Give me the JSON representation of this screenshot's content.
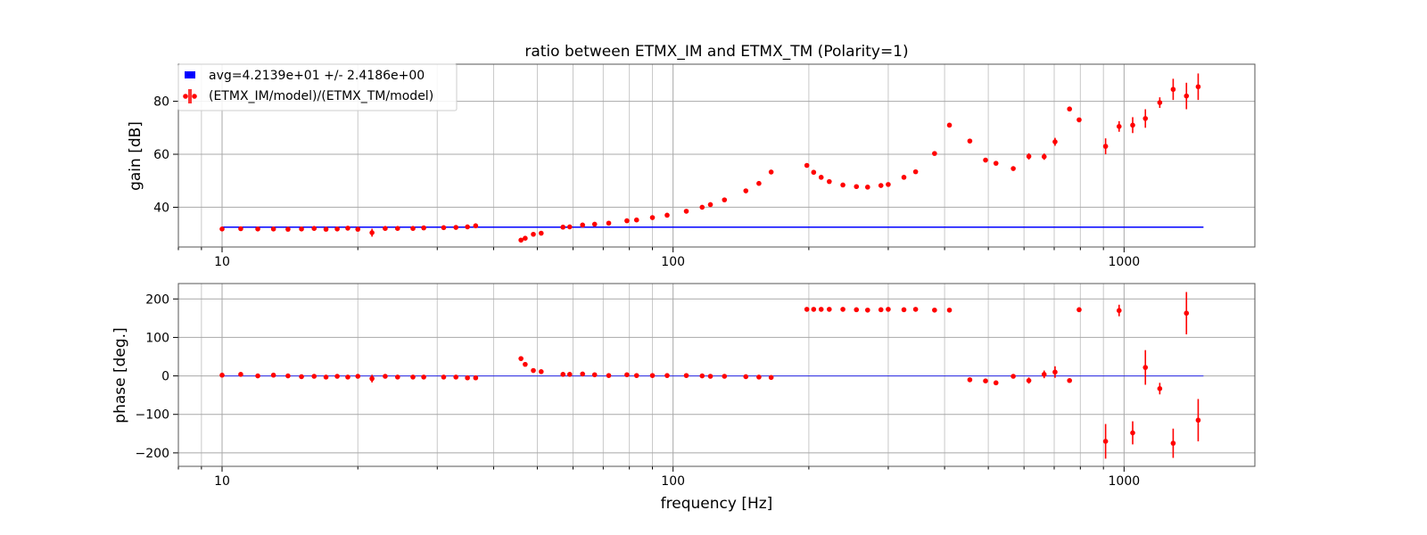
{
  "colors": {
    "avg_line": "#0000ff",
    "points": "#ff0000"
  },
  "chart_data": [
    {
      "type": "scatter",
      "title": "ratio between ETMX_IM and ETMX_TM (Polarity=1)",
      "xlabel": "",
      "ylabel": "gain [dB]",
      "xscale": "log",
      "xlim": [
        8,
        1950
      ],
      "ylim": [
        25,
        94
      ],
      "grid": true,
      "legend_position": "top-left",
      "x_ticks": [
        "10",
        "100",
        "1000"
      ],
      "y_ticks": [
        "40",
        "60",
        "80"
      ],
      "legend": [
        "avg=4.2139e+01 +/- 2.4186e+00",
        "(ETMX_IM/model)/(ETMX_TM/model)"
      ],
      "series": [
        {
          "name": "avg=4.2139e+01 +/- 2.4186e+00",
          "kind": "line",
          "x": [
            10,
            1500
          ],
          "y": [
            32.5,
            32.5
          ]
        },
        {
          "name": "(ETMX_IM/model)/(ETMX_TM/model)",
          "kind": "errorbar",
          "points": [
            [
              10,
              31.8,
              0.5
            ],
            [
              11,
              31.9,
              0.4
            ],
            [
              12,
              31.8,
              0.4
            ],
            [
              13,
              31.8,
              0.4
            ],
            [
              14,
              31.7,
              0.4
            ],
            [
              15,
              31.8,
              0.4
            ],
            [
              16,
              32.0,
              0.4
            ],
            [
              17,
              31.7,
              0.4
            ],
            [
              18,
              31.8,
              0.4
            ],
            [
              19,
              32.1,
              0.5
            ],
            [
              20,
              31.7,
              0.5
            ],
            [
              21.5,
              30.4,
              1.5
            ],
            [
              23,
              32.0,
              0.5
            ],
            [
              24.5,
              32.0,
              0.5
            ],
            [
              26.5,
              32.0,
              0.5
            ],
            [
              28,
              32.2,
              0.5
            ],
            [
              31,
              32.3,
              0.5
            ],
            [
              33,
              32.4,
              0.5
            ],
            [
              35,
              32.6,
              0.5
            ],
            [
              36.5,
              33.0,
              0.5
            ],
            [
              46,
              27.6,
              0.6
            ],
            [
              47,
              28.3,
              0.6
            ],
            [
              49,
              29.8,
              0.5
            ],
            [
              51,
              30.2,
              0.5
            ],
            [
              57,
              32.5,
              0.5
            ],
            [
              59,
              32.6,
              0.5
            ],
            [
              63,
              33.3,
              0.5
            ],
            [
              67,
              33.6,
              0.5
            ],
            [
              72,
              34.0,
              0.5
            ],
            [
              79,
              34.9,
              0.5
            ],
            [
              83,
              35.2,
              0.5
            ],
            [
              90,
              36.1,
              0.5
            ],
            [
              97,
              37.0,
              0.5
            ],
            [
              107,
              38.5,
              0.5
            ],
            [
              116,
              40.0,
              0.5
            ],
            [
              121,
              41.0,
              0.5
            ],
            [
              130,
              42.8,
              0.5
            ],
            [
              145,
              46.2,
              0.5
            ],
            [
              155,
              49.0,
              0.5
            ],
            [
              165,
              53.3,
              0.6
            ],
            [
              198,
              55.8,
              0.6
            ],
            [
              205,
              53.2,
              0.6
            ],
            [
              213,
              51.3,
              0.6
            ],
            [
              222,
              49.7,
              0.6
            ],
            [
              238,
              48.4,
              0.6
            ],
            [
              255,
              47.8,
              0.6
            ],
            [
              270,
              47.6,
              0.6
            ],
            [
              289,
              48.2,
              0.6
            ],
            [
              300,
              48.6,
              0.6
            ],
            [
              325,
              51.3,
              0.6
            ],
            [
              345,
              53.4,
              0.6
            ],
            [
              380,
              60.3,
              0.6
            ],
            [
              410,
              71.0,
              0.6
            ],
            [
              455,
              65.0,
              0.6
            ],
            [
              493,
              57.8,
              0.6
            ],
            [
              520,
              56.6,
              0.6
            ],
            [
              568,
              54.6,
              0.8
            ],
            [
              615,
              59.2,
              1.2
            ],
            [
              665,
              59.1,
              1.2
            ],
            [
              703,
              64.7,
              1.5
            ],
            [
              757,
              77.1,
              0.6
            ],
            [
              795,
              73.0,
              0.6
            ],
            [
              910,
              63.0,
              3.0
            ],
            [
              975,
              70.5,
              2.0
            ],
            [
              1045,
              71.0,
              3.0
            ],
            [
              1115,
              73.5,
              3.5
            ],
            [
              1200,
              79.5,
              2.0
            ],
            [
              1285,
              84.5,
              4.0
            ],
            [
              1375,
              82.0,
              5.0
            ],
            [
              1460,
              85.5,
              5.0
            ]
          ]
        }
      ]
    },
    {
      "type": "scatter",
      "title": "",
      "xlabel": "frequency [Hz]",
      "ylabel": "phase [deg.]",
      "xscale": "log",
      "xlim": [
        8,
        1950
      ],
      "ylim": [
        -235,
        240
      ],
      "grid": true,
      "x_ticks": [
        "10",
        "100",
        "1000"
      ],
      "y_ticks": [
        "200",
        "100",
        "0",
        "−100",
        "−200"
      ],
      "series": [
        {
          "name": "avg=4.2139e+01 +/- 2.4186e+00",
          "kind": "line",
          "x": [
            10,
            1500
          ],
          "y": [
            0,
            0
          ]
        },
        {
          "name": "(ETMX_IM/model)/(ETMX_TM/model)",
          "kind": "errorbar",
          "points": [
            [
              10,
              2,
              3
            ],
            [
              11,
              4,
              3
            ],
            [
              12,
              0,
              3
            ],
            [
              13,
              2,
              3
            ],
            [
              14,
              0,
              3
            ],
            [
              15,
              -2,
              3
            ],
            [
              16,
              -1,
              3
            ],
            [
              17,
              -3,
              3
            ],
            [
              18,
              -1,
              3
            ],
            [
              19,
              -3,
              3
            ],
            [
              20,
              -1,
              3
            ],
            [
              21.5,
              -7,
              10
            ],
            [
              23,
              -1,
              3
            ],
            [
              24.5,
              -3,
              3
            ],
            [
              26.5,
              -3,
              3
            ],
            [
              28,
              -3,
              3
            ],
            [
              31,
              -3,
              3
            ],
            [
              33,
              -3,
              3
            ],
            [
              35,
              -5,
              3
            ],
            [
              36.5,
              -5,
              3
            ],
            [
              46,
              45,
              4
            ],
            [
              47,
              30,
              3
            ],
            [
              49,
              14,
              3
            ],
            [
              51,
              11,
              3
            ],
            [
              57,
              4,
              3
            ],
            [
              59,
              4,
              3
            ],
            [
              63,
              5,
              3
            ],
            [
              67,
              3,
              3
            ],
            [
              72,
              1,
              3
            ],
            [
              79,
              3,
              3
            ],
            [
              83,
              1,
              3
            ],
            [
              90,
              1,
              3
            ],
            [
              97,
              1,
              3
            ],
            [
              107,
              1,
              3
            ],
            [
              116,
              0,
              3
            ],
            [
              121,
              -1,
              3
            ],
            [
              130,
              -1,
              3
            ],
            [
              145,
              -2,
              3
            ],
            [
              155,
              -3,
              3
            ],
            [
              165,
              -4,
              3
            ],
            [
              198,
              173,
              3
            ],
            [
              205,
              173,
              3
            ],
            [
              213,
              173,
              3
            ],
            [
              222,
              173,
              3
            ],
            [
              238,
              173,
              3
            ],
            [
              255,
              172,
              3
            ],
            [
              270,
              171,
              3
            ],
            [
              289,
              172,
              3
            ],
            [
              300,
              173,
              3
            ],
            [
              325,
              172,
              3
            ],
            [
              345,
              173,
              3
            ],
            [
              380,
              171,
              3
            ],
            [
              410,
              171,
              3
            ],
            [
              455,
              -10,
              3
            ],
            [
              493,
              -13,
              3
            ],
            [
              520,
              -18,
              3
            ],
            [
              568,
              -1,
              5
            ],
            [
              615,
              -12,
              8
            ],
            [
              665,
              4,
              10
            ],
            [
              703,
              10,
              15
            ],
            [
              757,
              -12,
              3
            ],
            [
              795,
              172,
              6
            ],
            [
              910,
              -170,
              45
            ],
            [
              975,
              170,
              15
            ],
            [
              1045,
              -148,
              30
            ],
            [
              1115,
              22,
              45
            ],
            [
              1200,
              -33,
              15
            ],
            [
              1285,
              -175,
              38
            ],
            [
              1375,
              163,
              55
            ],
            [
              1460,
              -115,
              55
            ]
          ]
        }
      ]
    }
  ]
}
